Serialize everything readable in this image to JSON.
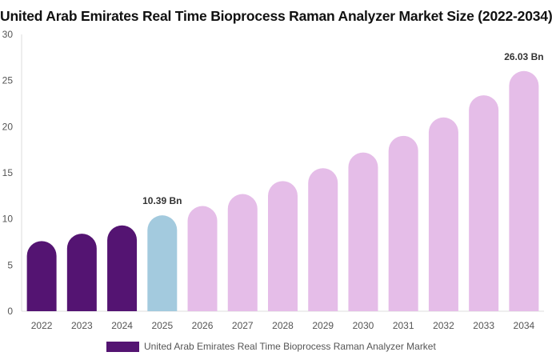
{
  "chart_data": {
    "type": "bar",
    "title": "United Arab Emirates Real Time Bioprocess Raman Analyzer Market Size (2022-2034)",
    "xlabel": "",
    "ylabel": "",
    "ylim": [
      0,
      30
    ],
    "yticks": [
      "0",
      "5",
      "10",
      "15",
      "20",
      "25",
      "30"
    ],
    "categories": [
      "2022",
      "2023",
      "2024",
      "2025",
      "2026",
      "2027",
      "2028",
      "2029",
      "2030",
      "2031",
      "2032",
      "2033",
      "2034"
    ],
    "series": [
      {
        "name": "United Arab Emirates Real Time Bioprocess Raman Analyzer Market",
        "values": [
          7.6,
          8.4,
          9.3,
          10.39,
          11.4,
          12.7,
          14.1,
          15.5,
          17.2,
          19.0,
          21.0,
          23.4,
          26.03
        ]
      }
    ],
    "bar_colors": [
      "#541472",
      "#541472",
      "#541472",
      "#a3cade",
      "#e5bde8",
      "#e5bde8",
      "#e5bde8",
      "#e5bde8",
      "#e5bde8",
      "#e5bde8",
      "#e5bde8",
      "#e5bde8",
      "#e5bde8"
    ],
    "data_labels": [
      {
        "category": "2025",
        "text": "10.39 Bn"
      },
      {
        "category": "2034",
        "text": "26.03 Bn"
      }
    ],
    "legend": {
      "position": "bottom",
      "color": "#541472"
    },
    "grid": false
  }
}
